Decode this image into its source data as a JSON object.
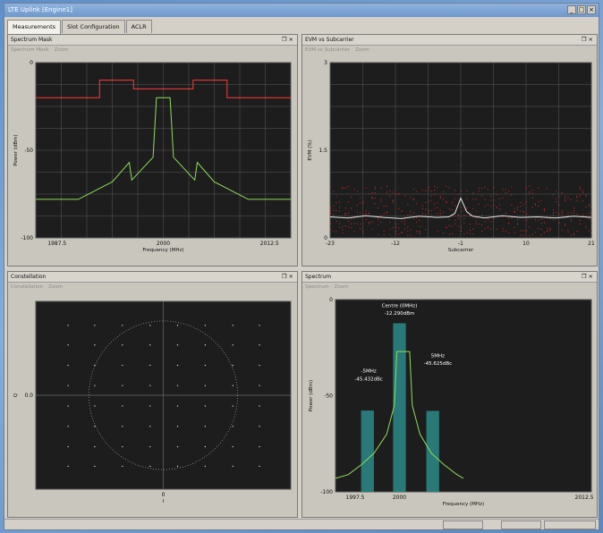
{
  "window": {
    "title": "LTE Uplink [Engine1]"
  },
  "tabs": [
    {
      "label": "Measurements"
    },
    {
      "label": "Slot Configuration"
    },
    {
      "label": "ACLR"
    }
  ],
  "panel_controls": "❐ ×",
  "panels": {
    "spectrum_mask": {
      "title": "Spectrum Mask",
      "toolbar": [
        "Spectrum Mask",
        "Zoom"
      ],
      "xlabel": "Frequency (MHz)",
      "ylabel": "Power (dBm)",
      "xticks": [
        "1987.5",
        "2000",
        "2012.5"
      ],
      "yticks": [
        "0",
        "-50",
        "-100"
      ]
    },
    "evm": {
      "title": "EVM vs Subcarrier",
      "toolbar": [
        "EVM vs Subcarrier",
        "Zoom"
      ],
      "xlabel": "Subcarrier",
      "ylabel": "EVM (%)",
      "xticks": [
        "-23",
        "-12",
        "-1",
        "10",
        "21"
      ],
      "yticks": [
        "3",
        "1.5",
        "0"
      ]
    },
    "constellation": {
      "title": "Constellation",
      "toolbar": [
        "Constellation",
        "Zoom"
      ],
      "xlabel": "I",
      "ylabel": "Q",
      "xticks": [
        "0"
      ],
      "yticks": [
        "0.0"
      ]
    },
    "spectrum": {
      "title": "Spectrum",
      "toolbar": [
        "Spectrum",
        "Zoom"
      ],
      "xlabel": "Frequency (MHz)",
      "ylabel": "Power (dBm)",
      "xticks": [
        "1997.5",
        "2000",
        "2012.5"
      ],
      "yticks": [
        "0",
        "-50",
        "-100"
      ],
      "annotations": {
        "left": [
          "-5MHz",
          "-45.432dBc"
        ],
        "centre": [
          "Centre (0MHz)",
          "-12.290dBm"
        ],
        "right": [
          "5MHz",
          "-45.625dBc"
        ]
      }
    }
  },
  "chart_data": [
    {
      "type": "line",
      "title": "Spectrum Mask",
      "xlabel": "Frequency (MHz)",
      "ylabel": "Power (dBm)",
      "xlim": [
        1985,
        2015
      ],
      "ylim": [
        -100,
        0
      ],
      "series": [
        {
          "color": "#ff3b3b",
          "x": [
            1985,
            1992.5,
            1992.5,
            1996.5,
            1996.5,
            1998.5,
            1998.5,
            2001.5,
            2001.5,
            2003.5,
            2003.5,
            2007.5,
            2007.5,
            2015
          ],
          "y": [
            -20,
            -20,
            -10,
            -10,
            -15,
            -15,
            -15,
            -15,
            -15,
            -15,
            -10,
            -10,
            -20,
            -20
          ]
        },
        {
          "color": "#8fdc5a",
          "x": [
            1985,
            1990,
            1994,
            1996,
            1996.3,
            1998.8,
            1999.2,
            2000.8,
            2001.2,
            2003.7,
            2004,
            2006,
            2010,
            2015
          ],
          "y": [
            -78,
            -78,
            -68,
            -57,
            -67,
            -54,
            -20,
            -20,
            -54,
            -67,
            -57,
            -68,
            -78,
            -78
          ]
        }
      ]
    },
    {
      "type": "scatter",
      "title": "EVM vs Subcarrier",
      "xlabel": "Subcarrier",
      "ylabel": "EVM (%)",
      "xlim": [
        -23,
        21
      ],
      "ylim": [
        0,
        3
      ],
      "series": [
        {
          "color": "#e8e8e8",
          "x": [
            -23,
            -20,
            -17,
            -14,
            -11,
            -8,
            -5,
            -3,
            -2,
            -1,
            0,
            1,
            3,
            6,
            9,
            12,
            15,
            18,
            21
          ],
          "y": [
            0.36,
            0.34,
            0.38,
            0.35,
            0.33,
            0.37,
            0.35,
            0.36,
            0.42,
            0.68,
            0.45,
            0.37,
            0.34,
            0.38,
            0.35,
            0.36,
            0.34,
            0.37,
            0.35
          ]
        }
      ]
    },
    {
      "type": "scatter",
      "title": "Constellation",
      "xlabel": "I",
      "ylabel": "Q",
      "xlim": [
        -1.2,
        1.2
      ],
      "ylim": [
        -1.2,
        1.2
      ]
    },
    {
      "type": "bar",
      "title": "Spectrum",
      "xlabel": "Frequency (MHz)",
      "ylabel": "Power (dBm)",
      "xlim": [
        1995,
        2015
      ],
      "ylim": [
        -100,
        0
      ],
      "categories": [
        "-5MHz",
        "Centre (0MHz)",
        "5MHz"
      ],
      "values": [
        -57.7,
        -12.3,
        -57.9
      ],
      "bar_color": "#2c8a8a"
    }
  ]
}
